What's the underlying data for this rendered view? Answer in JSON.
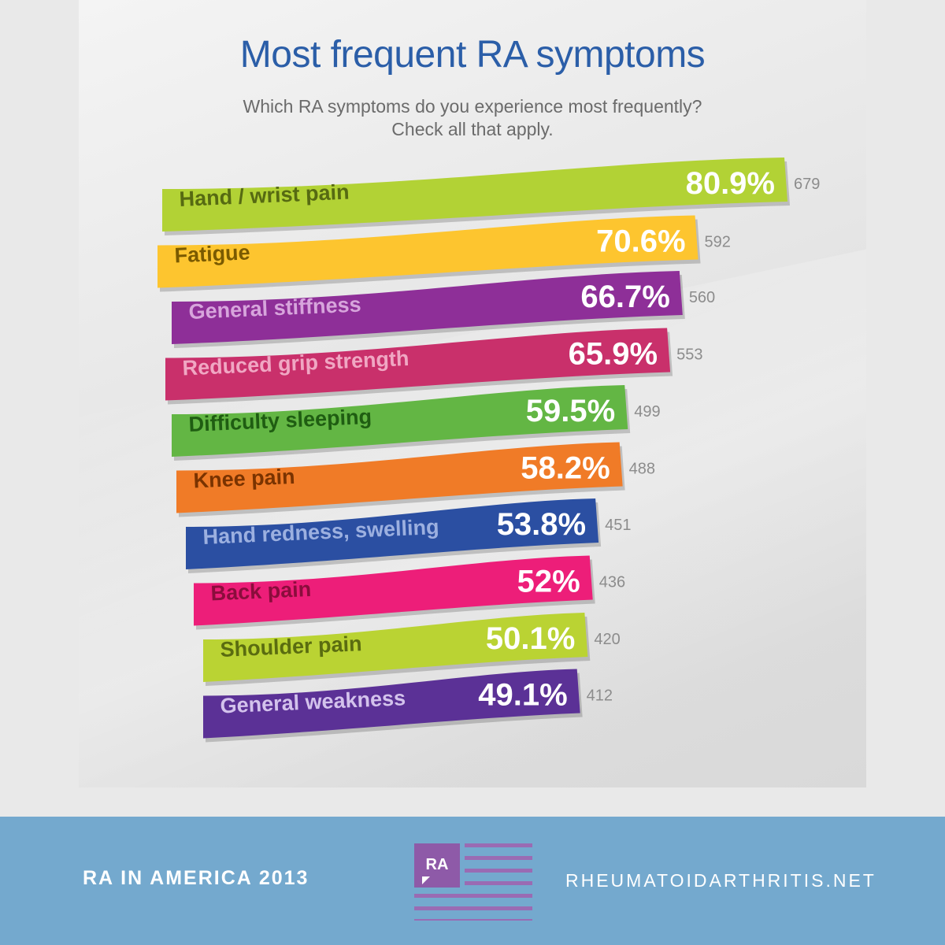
{
  "chart_data": {
    "type": "bar",
    "title": "Most frequent RA symptoms",
    "subtitle": [
      "Which RA symptoms do you experience most frequently?",
      "Check all that apply."
    ],
    "categories": [
      "Hand / wrist pain",
      "Fatigue",
      "General stiffness",
      "Reduced grip strength",
      "Difficulty sleeping",
      "Knee pain",
      "Hand redness, swelling",
      "Back pain",
      "Shoulder pain",
      "General weakness"
    ],
    "series": [
      {
        "values": [
          80.9,
          70.6,
          66.7,
          65.9,
          59.5,
          58.2,
          53.8,
          52,
          50.1,
          49.1
        ]
      }
    ],
    "value_labels": [
      "80.9%",
      "70.6%",
      "66.7%",
      "65.9%",
      "59.5%",
      "58.2%",
      "53.8%",
      "52%",
      "50.1%",
      "49.1%"
    ],
    "counts": [
      "679",
      "592",
      "560",
      "553",
      "499",
      "488",
      "451",
      "436",
      "420",
      "412"
    ],
    "colors": [
      "#b2d235",
      "#fdc52f",
      "#8e2f98",
      "#c9306b",
      "#63b644",
      "#f07b27",
      "#2b4fa2",
      "#ed1e79",
      "#bad333",
      "#5b3196"
    ],
    "label_colors": [
      "#566a12",
      "#7a5a00",
      "#d7a5dc",
      "#f0a7c3",
      "#1f5d12",
      "#7a3300",
      "#9cb0e0",
      "#8a0d3c",
      "#5a6c10",
      "#d3c2ec"
    ],
    "orientation": "horizontal",
    "grid": false,
    "legend": "none"
  },
  "footer": {
    "left_text": "RA IN AMERICA 2013",
    "logo_text": "RA",
    "right_text": "RHEUMATOIDARTHRITIS.NET"
  }
}
